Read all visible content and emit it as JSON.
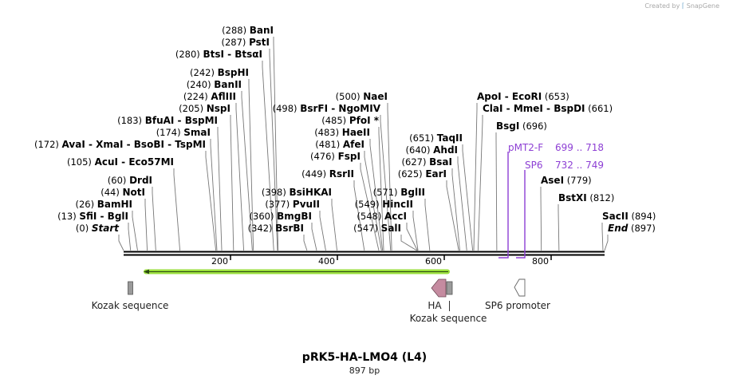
{
  "credit": {
    "text": "Created by",
    "brand": "SnapGene"
  },
  "map": {
    "title": "pRK5-HA-LMO4 (L4)",
    "length_label": "897 bp",
    "length_bp": 897,
    "ticks": [
      "200",
      "400",
      "600",
      "800"
    ]
  },
  "sites": [
    {
      "pos": 288,
      "label": "(288)",
      "names": [
        "BanI"
      ]
    },
    {
      "pos": 287,
      "label": "(287)",
      "names": [
        "PstI"
      ]
    },
    {
      "pos": 280,
      "label": "(280)",
      "names": [
        "BtsI",
        "BtsαI"
      ]
    },
    {
      "pos": 242,
      "label": "(242)",
      "names": [
        "BspHI"
      ]
    },
    {
      "pos": 240,
      "label": "(240)",
      "names": [
        "BanII"
      ]
    },
    {
      "pos": 224,
      "label": "(224)",
      "names": [
        "AflIII"
      ]
    },
    {
      "pos": 205,
      "label": "(205)",
      "names": [
        "NspI"
      ]
    },
    {
      "pos": 183,
      "label": "(183)",
      "names": [
        "BfuAI",
        "BspMI"
      ]
    },
    {
      "pos": 174,
      "label": "(174)",
      "names": [
        "SmaI"
      ]
    },
    {
      "pos": 172,
      "label": "(172)",
      "names": [
        "AvaI",
        "XmaI",
        "BsoBI",
        "TspMI"
      ]
    },
    {
      "pos": 105,
      "label": "(105)",
      "names": [
        "AcuI",
        "Eco57MI"
      ]
    },
    {
      "pos": 60,
      "label": "(60)",
      "names": [
        "DrdI"
      ]
    },
    {
      "pos": 44,
      "label": "(44)",
      "names": [
        "NotI"
      ]
    },
    {
      "pos": 26,
      "label": "(26)",
      "names": [
        "BamHI"
      ]
    },
    {
      "pos": 13,
      "label": "(13)",
      "names": [
        "SfiI",
        "BglI"
      ]
    },
    {
      "pos": 0,
      "label": "(0)",
      "names": [
        "Start"
      ],
      "italic": true
    },
    {
      "pos": 500,
      "label": "(500)",
      "names": [
        "NaeI"
      ]
    },
    {
      "pos": 498,
      "label": "(498)",
      "names": [
        "BsrFI",
        "NgoMIV"
      ]
    },
    {
      "pos": 485,
      "label": "(485)",
      "names": [
        "PfoI *"
      ]
    },
    {
      "pos": 483,
      "label": "(483)",
      "names": [
        "HaeII"
      ]
    },
    {
      "pos": 481,
      "label": "(481)",
      "names": [
        "AfeI"
      ]
    },
    {
      "pos": 476,
      "label": "(476)",
      "names": [
        "FspI"
      ]
    },
    {
      "pos": 449,
      "label": "(449)",
      "names": [
        "RsrII"
      ]
    },
    {
      "pos": 398,
      "label": "(398)",
      "names": [
        "BsiHKAI"
      ]
    },
    {
      "pos": 377,
      "label": "(377)",
      "names": [
        "PvuII"
      ]
    },
    {
      "pos": 360,
      "label": "(360)",
      "names": [
        "BmgBI"
      ]
    },
    {
      "pos": 342,
      "label": "(342)",
      "names": [
        "BsrBI"
      ]
    },
    {
      "pos": 571,
      "label": "(571)",
      "names": [
        "BglII"
      ]
    },
    {
      "pos": 549,
      "label": "(549)",
      "names": [
        "HincII"
      ]
    },
    {
      "pos": 548,
      "label": "(548)",
      "names": [
        "AccI"
      ]
    },
    {
      "pos": 547,
      "label": "(547)",
      "names": [
        "SalI"
      ]
    },
    {
      "pos": 651,
      "label": "(651)",
      "names": [
        "TaqII"
      ]
    },
    {
      "pos": 640,
      "label": "(640)",
      "names": [
        "AhdI"
      ]
    },
    {
      "pos": 627,
      "label": "(627)",
      "names": [
        "BsaI"
      ]
    },
    {
      "pos": 625,
      "label": "(625)",
      "names": [
        "EarI"
      ]
    },
    {
      "pos": 653,
      "label": "(653)",
      "names": [
        "ApoI",
        "EcoRI"
      ]
    },
    {
      "pos": 661,
      "label": "(661)",
      "names": [
        "ClaI",
        "MmeI",
        "BspDI"
      ]
    },
    {
      "pos": 696,
      "label": "(696)",
      "names": [
        "BsgI"
      ]
    },
    {
      "pos": 779,
      "label": "(779)",
      "names": [
        "AseI"
      ]
    },
    {
      "pos": 812,
      "label": "(812)",
      "names": [
        "BstXI"
      ]
    },
    {
      "pos": 894,
      "label": "(894)",
      "names": [
        "SacII"
      ]
    },
    {
      "pos": 897,
      "label": "(897)",
      "names": [
        "End"
      ],
      "italic": true
    }
  ],
  "primers": [
    {
      "name": "pMT2-F",
      "range": "699 .. 718",
      "start": 699,
      "end": 718
    },
    {
      "name": "SP6",
      "range": "732 .. 749",
      "start": 732,
      "end": 749
    }
  ],
  "features": [
    {
      "name": "Kozak sequence",
      "type": "kozak"
    },
    {
      "name": "HA",
      "type": "tag"
    },
    {
      "name": "Kozak sequence",
      "type": "kozak"
    },
    {
      "name": "SP6 promoter",
      "type": "promoter"
    }
  ],
  "orf": {
    "strand": "reverse",
    "color": "#9adf3c"
  },
  "colors": {
    "primer": "#8d3fd4",
    "orf": "#9adf3c",
    "tag": "#c58ba0",
    "kozak": "#9a9a9a"
  }
}
